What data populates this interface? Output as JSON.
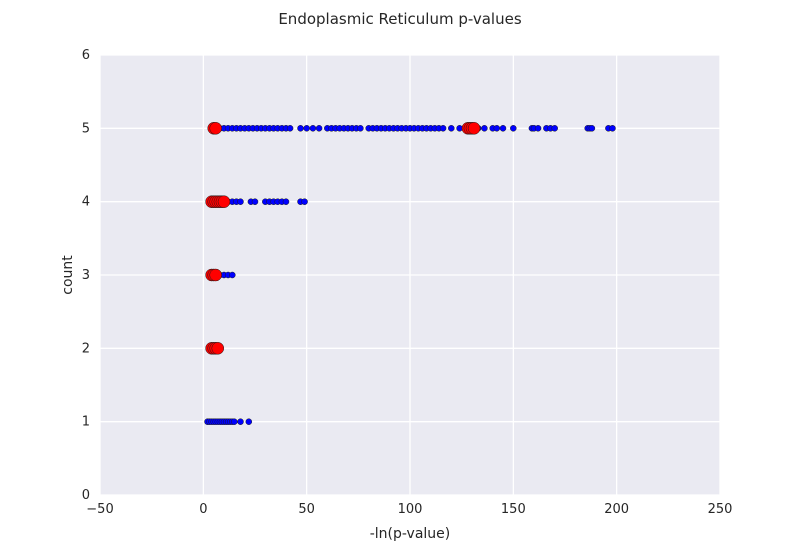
{
  "chart_data": {
    "type": "scatter",
    "title": "Endoplasmic Reticulum p-values",
    "xlabel": "-ln(p-value)",
    "ylabel": "count",
    "xlim": [
      -50,
      250
    ],
    "ylim": [
      0,
      6
    ],
    "xticks": [
      "−50",
      "0",
      "50",
      "100",
      "150",
      "200",
      "250"
    ],
    "xtick_values": [
      -50,
      0,
      50,
      100,
      150,
      200,
      250
    ],
    "yticks": [
      "0",
      "1",
      "2",
      "3",
      "4",
      "5",
      "6"
    ],
    "ytick_values": [
      0,
      1,
      2,
      3,
      4,
      5,
      6
    ],
    "grid": true,
    "background": "#eaeaf2",
    "series": [
      {
        "color": "#0000ff",
        "marker": "small-circle",
        "points": [
          [
            4,
            5
          ],
          [
            5,
            5
          ],
          [
            6,
            5
          ],
          [
            8,
            5
          ],
          [
            10,
            5
          ],
          [
            12,
            5
          ],
          [
            14,
            5
          ],
          [
            16,
            5
          ],
          [
            18,
            5
          ],
          [
            20,
            5
          ],
          [
            22,
            5
          ],
          [
            24,
            5
          ],
          [
            26,
            5
          ],
          [
            28,
            5
          ],
          [
            30,
            5
          ],
          [
            32,
            5
          ],
          [
            34,
            5
          ],
          [
            36,
            5
          ],
          [
            38,
            5
          ],
          [
            40,
            5
          ],
          [
            42,
            5
          ],
          [
            47,
            5
          ],
          [
            50,
            5
          ],
          [
            53,
            5
          ],
          [
            56,
            5
          ],
          [
            60,
            5
          ],
          [
            62,
            5
          ],
          [
            64,
            5
          ],
          [
            66,
            5
          ],
          [
            68,
            5
          ],
          [
            70,
            5
          ],
          [
            72,
            5
          ],
          [
            74,
            5
          ],
          [
            76,
            5
          ],
          [
            80,
            5
          ],
          [
            82,
            5
          ],
          [
            84,
            5
          ],
          [
            86,
            5
          ],
          [
            88,
            5
          ],
          [
            90,
            5
          ],
          [
            92,
            5
          ],
          [
            94,
            5
          ],
          [
            96,
            5
          ],
          [
            98,
            5
          ],
          [
            100,
            5
          ],
          [
            102,
            5
          ],
          [
            104,
            5
          ],
          [
            106,
            5
          ],
          [
            108,
            5
          ],
          [
            110,
            5
          ],
          [
            112,
            5
          ],
          [
            114,
            5
          ],
          [
            116,
            5
          ],
          [
            120,
            5
          ],
          [
            124,
            5
          ],
          [
            127,
            5
          ],
          [
            133,
            5
          ],
          [
            136,
            5
          ],
          [
            140,
            5
          ],
          [
            142,
            5
          ],
          [
            145,
            5
          ],
          [
            150,
            5
          ],
          [
            159,
            5
          ],
          [
            160,
            5
          ],
          [
            162,
            5
          ],
          [
            166,
            5
          ],
          [
            168,
            5
          ],
          [
            170,
            5
          ],
          [
            186,
            5
          ],
          [
            187,
            5
          ],
          [
            188,
            5
          ],
          [
            196,
            5
          ],
          [
            198,
            5
          ],
          [
            4,
            4
          ],
          [
            5,
            4
          ],
          [
            6,
            4
          ],
          [
            8,
            4
          ],
          [
            10,
            4
          ],
          [
            12,
            4
          ],
          [
            14,
            4
          ],
          [
            16,
            4
          ],
          [
            18,
            4
          ],
          [
            23,
            4
          ],
          [
            25,
            4
          ],
          [
            30,
            4
          ],
          [
            32,
            4
          ],
          [
            34,
            4
          ],
          [
            36,
            4
          ],
          [
            38,
            4
          ],
          [
            40,
            4
          ],
          [
            47,
            4
          ],
          [
            49,
            4
          ],
          [
            4,
            3
          ],
          [
            5,
            3
          ],
          [
            6,
            3
          ],
          [
            8,
            3
          ],
          [
            10,
            3
          ],
          [
            12,
            3
          ],
          [
            14,
            3
          ],
          [
            4,
            2
          ],
          [
            5,
            2
          ],
          [
            6,
            2
          ],
          [
            7,
            2
          ],
          [
            8,
            2
          ],
          [
            2,
            1
          ],
          [
            3,
            1
          ],
          [
            4,
            1
          ],
          [
            5,
            1
          ],
          [
            6,
            1
          ],
          [
            7,
            1
          ],
          [
            8,
            1
          ],
          [
            9,
            1
          ],
          [
            10,
            1
          ],
          [
            11,
            1
          ],
          [
            12,
            1
          ],
          [
            13,
            1
          ],
          [
            14,
            1
          ],
          [
            15,
            1
          ],
          [
            18,
            1
          ],
          [
            22,
            1
          ]
        ]
      },
      {
        "color": "#ff0000",
        "marker": "large-circle",
        "points": [
          [
            5,
            5
          ],
          [
            6,
            5
          ],
          [
            128,
            5
          ],
          [
            129,
            5
          ],
          [
            130,
            5
          ],
          [
            131,
            5
          ],
          [
            4,
            4
          ],
          [
            5,
            4
          ],
          [
            6,
            4
          ],
          [
            7,
            4
          ],
          [
            8,
            4
          ],
          [
            9,
            4
          ],
          [
            10,
            4
          ],
          [
            4,
            3
          ],
          [
            5,
            3
          ],
          [
            6,
            3
          ],
          [
            4,
            2
          ],
          [
            5,
            2
          ],
          [
            6,
            2
          ],
          [
            7,
            2
          ]
        ]
      }
    ]
  }
}
